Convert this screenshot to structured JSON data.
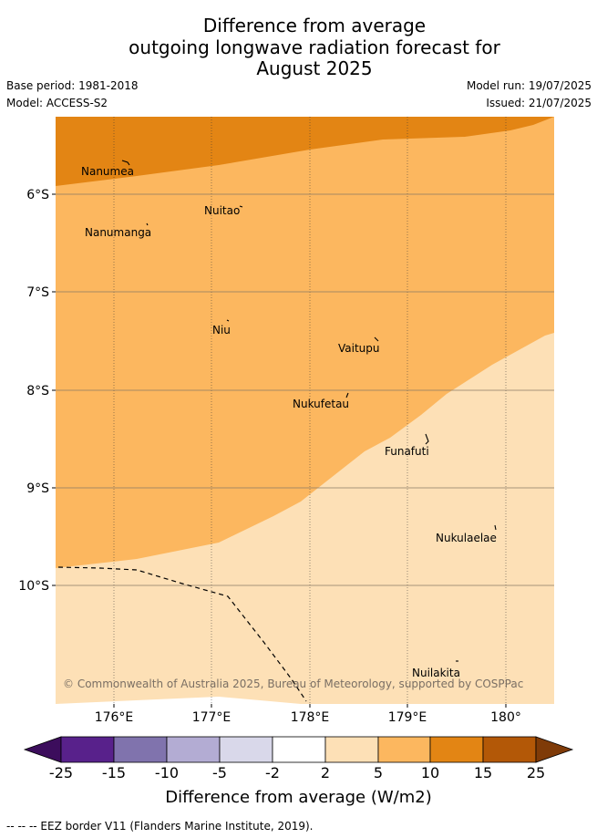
{
  "title": {
    "line1": "Difference from average",
    "line2": "outgoing longwave radiation forecast for",
    "line3": "August 2025"
  },
  "meta": {
    "base_period": "Base period: 1981-2018",
    "model": "Model: ACCESS-S2",
    "model_run": "Model run: 19/07/2025",
    "issued": "Issued: 21/07/2025"
  },
  "map": {
    "x_ticks": [
      "176°E",
      "177°E",
      "178°E",
      "179°E",
      "180°"
    ],
    "y_ticks": [
      "6°S",
      "7°S",
      "8°S",
      "9°S",
      "10°S"
    ],
    "islands": [
      "Nanumea",
      "Nuitao",
      "Nanumanga",
      "Niu",
      "Vaitupu",
      "Nukufetau",
      "Funafuti",
      "Nukulaelae",
      "Nuilakita"
    ],
    "copyright": "© Commonwealth of Australia 2025, Bureau of Meteorology, supported by COSPPac",
    "colors": {
      "10_to_15": "#e38514",
      "5_to_10": "#fcb75f",
      "2_to_5": "#fde0b6"
    }
  },
  "colorbar": {
    "ticks": [
      "-25",
      "-15",
      "-10",
      "-5",
      "-2",
      "2",
      "5",
      "10",
      "15",
      "25"
    ],
    "colors": [
      "#3c0d5c",
      "#58218b",
      "#8073ad",
      "#b3acd3",
      "#d9d8ea",
      "#ffffff",
      "#fde0b6",
      "#fcb75f",
      "#e38514",
      "#b35807",
      "#7f3b08"
    ],
    "label": "Difference from average (W/m2)"
  },
  "footer": "-- -- -- EEZ border V11 (Flanders Marine Institute, 2019)."
}
